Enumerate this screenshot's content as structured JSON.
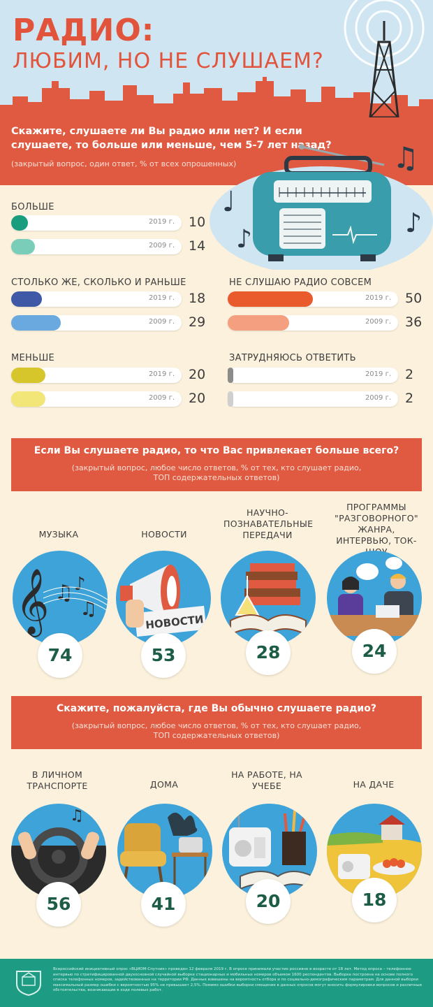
{
  "header": {
    "title_line1": "РАДИО:",
    "title_line2": "ЛЮБИМ, НО НЕ СЛУШАЕМ?"
  },
  "q1": {
    "question": "Скажите, слушаете ли Вы радио или нет? И если слушаете, то больше или меньше, чем 5-7 лет назад?",
    "note": "(закрытый вопрос, один ответ, % от всех опрошенных)"
  },
  "chart_data": [
    {
      "type": "bar",
      "categories": [
        "БОЛЬШЕ",
        "СТОЛЬКО ЖЕ, СКОЛЬКО И РАНЬШЕ",
        "МЕНЬШЕ",
        "НЕ СЛУШАЮ РАДИО СОВСЕМ",
        "ЗАТРУДНЯЮСЬ ОТВЕТИТЬ"
      ],
      "series": [
        {
          "name": "2019 г.",
          "values": [
            10,
            18,
            20,
            50,
            2
          ]
        },
        {
          "name": "2009 г.",
          "values": [
            14,
            29,
            20,
            36,
            2
          ]
        }
      ],
      "ylim": [
        0,
        100
      ],
      "colors": {
        "БОЛЬШЕ": [
          "#1a9c7e",
          "#79cdb9"
        ],
        "СТОЛЬКО ЖЕ, СКОЛЬКО И РАНЬШЕ": [
          "#3f59a6",
          "#6aa9e0"
        ],
        "МЕНЬШЕ": [
          "#d6c52b",
          "#f2e678"
        ],
        "НЕ СЛУШАЮ РАДИО СОВСЕМ": [
          "#e95a2d",
          "#f49f7f"
        ],
        "ЗАТРУДНЯЮСЬ ОТВЕТИТЬ": [
          "#8c8c8c",
          "#cfcfcf"
        ]
      }
    },
    {
      "type": "bar",
      "title": "Если Вы слушаете радио, то что Вас привлекает больше всего?",
      "categories": [
        "МУЗЫКА",
        "НОВОСТИ",
        "НАУЧНО-ПОЗНАВАТЕЛЬНЫЕ ПЕРЕДАЧИ",
        "ПРОГРАММЫ \"РАЗГОВОРНОГО\" ЖАНРА, ИНТЕРВЬЮ, ТОК-ШОУ"
      ],
      "values": [
        74,
        53,
        28,
        24
      ]
    },
    {
      "type": "bar",
      "title": "Скажите, пожалуйста, где Вы обычно слушаете радио?",
      "categories": [
        "В ЛИЧНОМ ТРАНСПОРТЕ",
        "ДОМА",
        "НА РАБОТЕ, НА УЧЕБЕ",
        "НА ДАЧЕ"
      ],
      "values": [
        56,
        41,
        20,
        18
      ]
    }
  ],
  "q2": {
    "question": "Если Вы слушаете радио, то что Вас привлекает больше всего?",
    "note_line1": "(закрытый вопрос, любое число ответов, % от тех, кто слушает радио,",
    "note_line2": "ТОП содержательных ответов)",
    "items": [
      {
        "label": "МУЗЫКА",
        "value": "74"
      },
      {
        "label": "НОВОСТИ",
        "value": "53"
      },
      {
        "label": "НАУЧНО-ПОЗНАВАТЕЛЬНЫЕ ПЕРЕДАЧИ",
        "value": "28"
      },
      {
        "label": "ПРОГРАММЫ \"РАЗГОВОРНОГО\" ЖАНРА, ИНТЕРВЬЮ, ТОК-ШОУ",
        "value": "24"
      }
    ],
    "newspaper_word": "НОВОСТИ"
  },
  "q3": {
    "question": "Скажите, пожалуйста, где Вы обычно слушаете радио?",
    "note_line1": "(закрытый вопрос, любое число ответов, % от тех, кто слушает радио,",
    "note_line2": "ТОП содержательных ответов)",
    "items": [
      {
        "label": "В ЛИЧНОМ ТРАНСПОРТЕ",
        "value": "56"
      },
      {
        "label": "ДОМА",
        "value": "41"
      },
      {
        "label": "НА РАБОТЕ, НА УЧЕБЕ",
        "value": "20"
      },
      {
        "label": "НА ДАЧЕ",
        "value": "18"
      }
    ]
  },
  "footer": {
    "text": "Всероссийский инициативный опрос «ВЦИОМ-Спутник» проведен 12 февраля 2019 г. В опросе принимали участие россияне в возрасте от 18 лет. Метод опроса – телефонное интервью по стратифицированной двухосновной случайной выборке стационарных и мобильных номеров объемом 1600 респондентов. Выборка построена на основе полного списка телефонных номеров, задействованных на территории РФ. Данные взвешены на вероятность отбора и по социально-демографическим параметрам. Для данной выборки максимальный размер ошибки с вероятностью 95% не превышает 2,5%. Помимо ошибки выборки смещение в данных опросов могут вносить формулировки вопросов и различные обстоятельства, возникающие в ходе полевых работ."
  },
  "icons": [
    "radio-tower-icon",
    "retro-radio-icon",
    "music-note-icon",
    "treble-clef-icon",
    "megaphone-icon",
    "books-icon",
    "talk-show-icon",
    "steering-wheel-icon",
    "armchair-icon",
    "office-radio-icon",
    "dacha-icon",
    "vciom-logo-icon"
  ]
}
